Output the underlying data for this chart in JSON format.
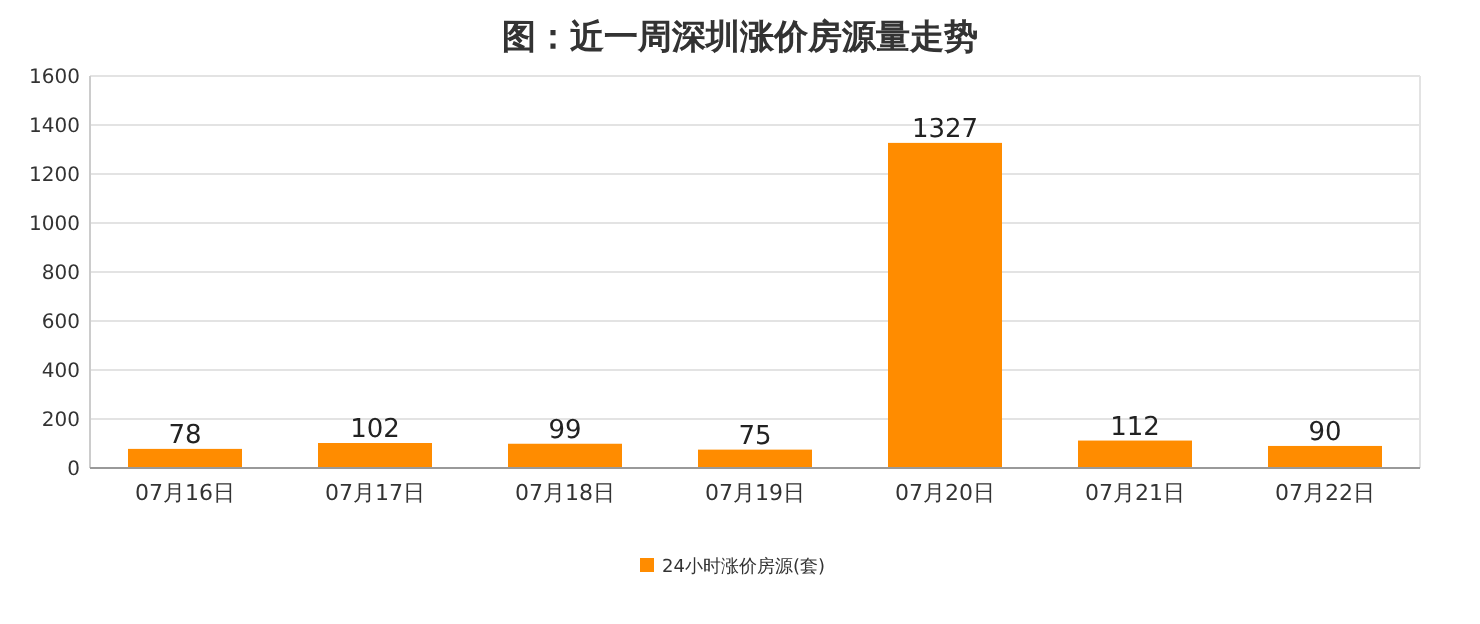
{
  "chart_data": {
    "type": "bar",
    "title": "图：近一周深圳涨价房源量走势",
    "categories": [
      "07月16日",
      "07月17日",
      "07月18日",
      "07月19日",
      "07月20日",
      "07月21日",
      "07月22日"
    ],
    "series": [
      {
        "name": "24小时涨价房源(套)",
        "color": "#ff8c00",
        "values": [
          78,
          102,
          99,
          75,
          1327,
          112,
          90
        ]
      }
    ],
    "ylim": [
      0,
      1600
    ],
    "yticks": [
      0,
      200,
      400,
      600,
      800,
      1000,
      1200,
      1400,
      1600
    ],
    "grid": "y",
    "legend": "bottom",
    "data_labels": true
  }
}
